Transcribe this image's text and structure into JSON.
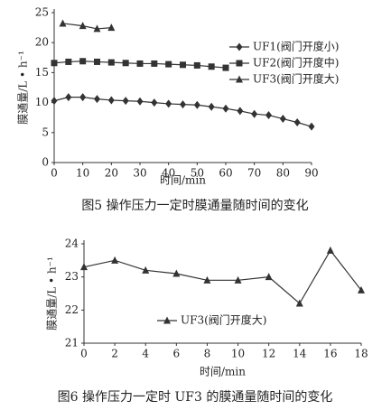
{
  "chart_data": [
    {
      "type": "line",
      "caption": "图5  操作压力一定时膜通量随时间的变化",
      "x_label": "时间/min",
      "y_label": "膜通量/L • h⁻¹",
      "xlim": [
        0,
        90
      ],
      "xticks": [
        0,
        10,
        20,
        30,
        40,
        50,
        60,
        70,
        80,
        90
      ],
      "ylim": [
        0,
        25
      ],
      "yticks": [
        0,
        5,
        10,
        15,
        20,
        25
      ],
      "legend": "outside-right",
      "series": [
        {
          "name": "UF1(阀门开度小)",
          "color": "#333333",
          "marker": "diamond",
          "x": [
            0,
            5,
            10,
            15,
            20,
            25,
            30,
            35,
            40,
            45,
            50,
            55,
            60,
            65,
            70,
            75,
            80,
            85,
            90
          ],
          "values": [
            10.3,
            10.9,
            10.9,
            10.6,
            10.4,
            10.3,
            10.2,
            10.0,
            9.8,
            9.7,
            9.6,
            9.3,
            9.0,
            8.6,
            8.1,
            7.9,
            7.3,
            6.7,
            6.0
          ]
        },
        {
          "name": "UF2(阀门开度中)",
          "color": "#333333",
          "marker": "square",
          "x": [
            0,
            5,
            10,
            15,
            20,
            25,
            30,
            35,
            40,
            45,
            50,
            55,
            60
          ],
          "values": [
            16.6,
            16.8,
            16.9,
            16.8,
            16.7,
            16.6,
            16.5,
            16.5,
            16.4,
            16.3,
            16.2,
            16.0,
            15.8
          ]
        },
        {
          "name": "UF3(阀门开度大)",
          "color": "#333333",
          "marker": "triangle",
          "x": [
            3,
            10,
            15,
            20
          ],
          "values": [
            23.2,
            22.8,
            22.3,
            22.5
          ]
        }
      ]
    },
    {
      "type": "line",
      "caption": "图6  操作压力一定时 UF3 的膜通量随时间的变化",
      "x_label": "时间/min",
      "y_label": "膜通量/L • h⁻¹",
      "xlim": [
        0,
        18
      ],
      "xticks": [
        0,
        2,
        4,
        6,
        8,
        10,
        12,
        14,
        16,
        18
      ],
      "ylim": [
        21,
        24
      ],
      "yticks": [
        21,
        22,
        23,
        24
      ],
      "legend": "inside-center",
      "series": [
        {
          "name": "UF3(阀门开度大)",
          "color": "#333333",
          "marker": "triangle",
          "x": [
            0,
            2,
            4,
            6,
            8,
            10,
            12,
            14,
            16,
            18
          ],
          "values": [
            23.3,
            23.5,
            23.2,
            23.1,
            22.9,
            22.9,
            23.0,
            22.2,
            23.8,
            22.6
          ]
        }
      ]
    }
  ]
}
